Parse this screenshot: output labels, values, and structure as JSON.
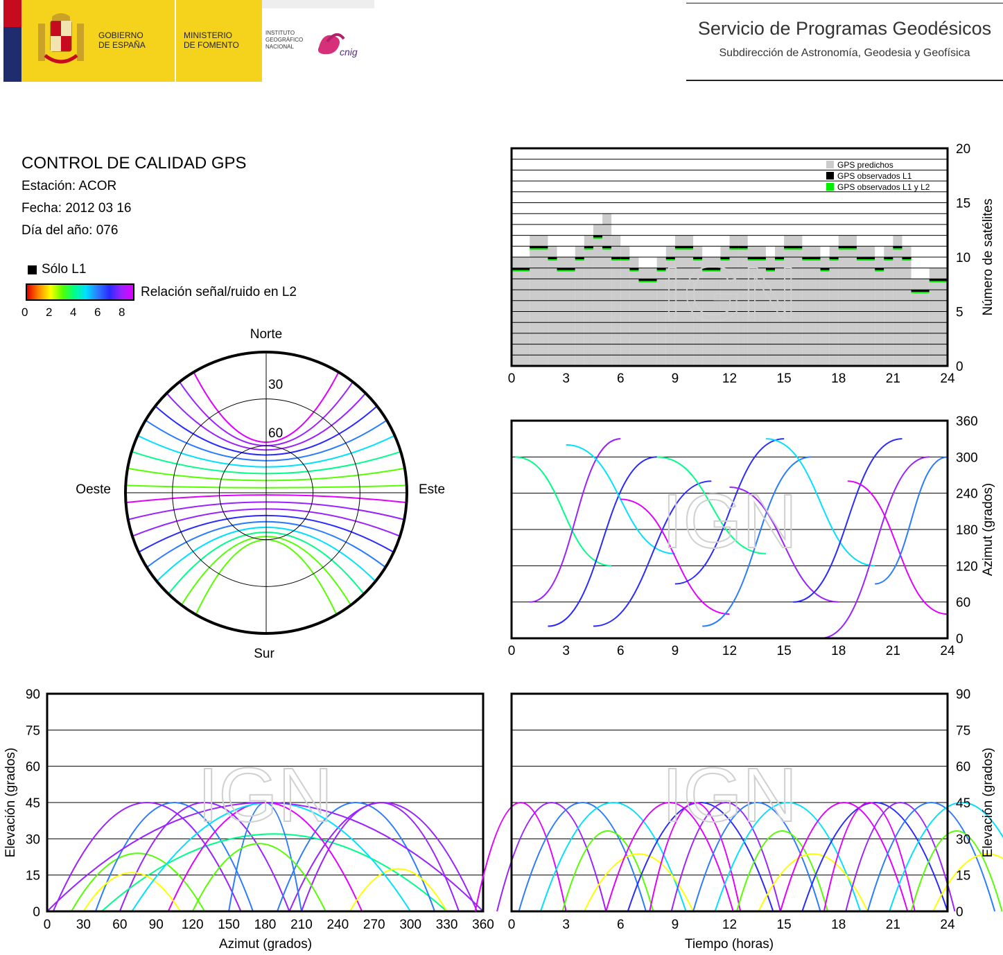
{
  "header": {
    "gobierno": [
      "GOBIERNO",
      "DE ESPAÑA"
    ],
    "ministerio": [
      "MINISTERIO",
      "DE FOMENTO"
    ],
    "instituto": [
      "INSTITUTO",
      "GEOGRÁFICO",
      "NACIONAL"
    ],
    "cnig": "cnig",
    "service_title": "Servicio de Programas Geodésicos",
    "service_subtitle": "Subdirección de Astronomía, Geodesia y Geofísica"
  },
  "info": {
    "title": "CONTROL DE CALIDAD GPS",
    "station": "Estación: ACOR",
    "date": "Fecha: 2012 03 16",
    "doy": "Día del año: 076"
  },
  "legend": {
    "l1_only": "Sólo L1",
    "snr_label": "Relación señal/ruido en L2",
    "snr_ticks": [
      "0",
      "2",
      "4",
      "6",
      "8"
    ]
  },
  "watermark": "IGN",
  "colors": {
    "predicted": "#cccccc",
    "observed_l1": "#000000",
    "observed_l1_l2": "#00ee00",
    "snr_scale": [
      "#e00000",
      "#ff8800",
      "#ffff00",
      "#55ff00",
      "#00ff88",
      "#00e0ff",
      "#2a7bff",
      "#2a2aff",
      "#9a22ff",
      "#e000ff"
    ]
  },
  "chart_data": [
    {
      "type": "bar",
      "id": "satellites",
      "x": {
        "range": [
          0,
          24
        ],
        "ticks": [
          "0",
          "3",
          "6",
          "9",
          "12",
          "15",
          "18",
          "21",
          "24"
        ]
      },
      "ylabel": "Número de satélites",
      "ylim": [
        0,
        20
      ],
      "yticks": [
        "0",
        "5",
        "10",
        "15",
        "20"
      ],
      "grid": true,
      "legend_position": "top-right",
      "legend": [
        "GPS predichos",
        "GPS observados L1",
        "GPS observados L1 y L2"
      ],
      "series": [
        {
          "name": "GPS predichos",
          "x_start": [
            0,
            1,
            2,
            2.5,
            3.5,
            4.0,
            4.5,
            5.0,
            5.5,
            6.0,
            6.5,
            7.0,
            8.0,
            8.5,
            9.0,
            10.0,
            10.5,
            11.5,
            12.0,
            12.5,
            13.0,
            14.0,
            14.5,
            15.0,
            16.0,
            17.0,
            17.5,
            18.0,
            19.0,
            20.0,
            20.5,
            21.0,
            21.5,
            22.0,
            23.0
          ],
          "values": [
            10,
            12,
            11,
            10,
            11,
            12,
            13,
            14,
            12,
            11,
            10,
            9,
            10,
            11,
            12,
            11,
            10,
            11,
            12,
            12,
            11,
            10,
            11,
            12,
            11,
            10,
            11,
            12,
            11,
            10,
            11,
            12,
            11,
            8,
            9
          ]
        },
        {
          "name": "GPS observados L1 y L2",
          "x_start": [
            0,
            1,
            2,
            2.5,
            3.5,
            4.0,
            4.5,
            5.0,
            5.5,
            6.0,
            6.5,
            7.0,
            8.0,
            8.5,
            9.0,
            10.0,
            10.5,
            11.5,
            12.0,
            12.5,
            13.0,
            14.0,
            14.5,
            15.0,
            16.0,
            17.0,
            17.5,
            18.0,
            19.0,
            20.0,
            20.5,
            21.0,
            21.5,
            22.0,
            23.0
          ],
          "values": [
            9,
            11,
            10,
            9,
            10,
            11,
            12,
            11,
            10,
            10,
            9,
            8,
            9,
            10,
            11,
            10,
            9,
            10,
            11,
            11,
            10,
            9,
            10,
            11,
            10,
            9,
            10,
            11,
            10,
            9,
            10,
            11,
            10,
            7,
            8
          ]
        }
      ]
    },
    {
      "type": "scatter",
      "id": "azimuth_time",
      "x": {
        "range": [
          0,
          24
        ],
        "ticks": [
          "0",
          "3",
          "6",
          "9",
          "12",
          "15",
          "18",
          "21",
          "24"
        ]
      },
      "ylabel": "Azimut (grados)",
      "ylim": [
        0,
        360
      ],
      "yticks": [
        "0",
        "60",
        "120",
        "180",
        "240",
        "300",
        "360"
      ],
      "grid": true
    },
    {
      "type": "scatter",
      "id": "elevation_azimuth",
      "xlabel": "Azimut (grados)",
      "xlim": [
        0,
        360
      ],
      "xticks": [
        "0",
        "30",
        "60",
        "90",
        "120",
        "150",
        "180",
        "210",
        "240",
        "270",
        "300",
        "330",
        "360"
      ],
      "ylabel": "Elevación (grados)",
      "ylim": [
        0,
        90
      ],
      "yticks": [
        "0",
        "15",
        "30",
        "45",
        "60",
        "75",
        "90"
      ],
      "grid": true
    },
    {
      "type": "scatter",
      "id": "elevation_time",
      "xlabel": "Tiempo (horas)",
      "xlim": [
        0,
        24
      ],
      "xticks": [
        "0",
        "3",
        "6",
        "9",
        "12",
        "15",
        "18",
        "21",
        "24"
      ],
      "ylabel": "Elevación (grados)",
      "ylim": [
        0,
        90
      ],
      "yticks": [
        "0",
        "15",
        "30",
        "45",
        "60",
        "75",
        "90"
      ],
      "grid": true
    },
    {
      "type": "scatter",
      "id": "skyplot",
      "directions": {
        "north": "Norte",
        "south": "Sur",
        "east": "Este",
        "west": "Oeste"
      },
      "rings": [
        "30",
        "60"
      ]
    }
  ]
}
